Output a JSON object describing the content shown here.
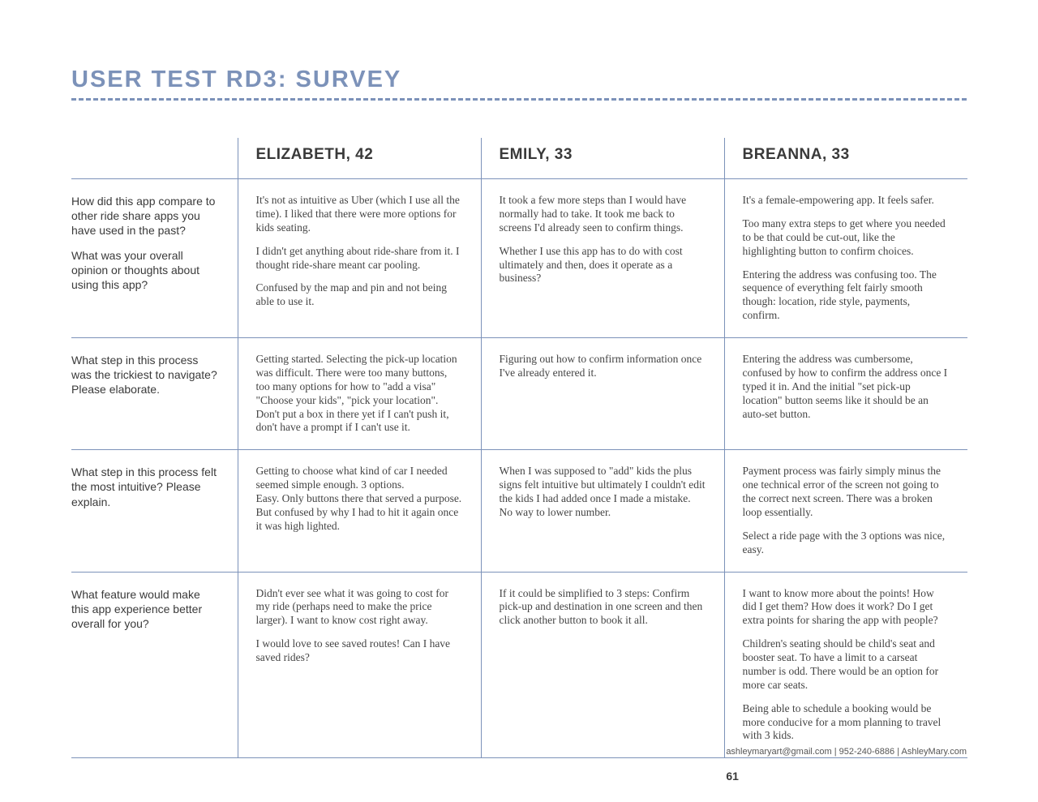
{
  "title": "USER TEST RD3: SURVEY",
  "colors": {
    "accent": "#7c92b9",
    "text": "#3f3f3f",
    "heading_text": "#3a3a3a",
    "background": "#ffffff"
  },
  "participants": [
    "ELIZABETH, 42",
    "EMILY, 33",
    "BREANNA, 33"
  ],
  "questions": [
    "How did this app compare to other ride share apps you have used in the past?\n\nWhat was your overall opinion or thoughts about using this app?",
    "What step in this process was the trickiest to navigate? Please elaborate.",
    "What step in this process felt the most intuitive? Please explain.",
    "What feature would make this app experience better overall for you?"
  ],
  "answers": [
    [
      "It's not as intuitive as Uber (which I use all the time). I liked that there were more options for kids seating.\n\nI didn't get anything about ride-share from it. I thought ride-share meant car pooling.\n\nConfused by the map and pin and not being able to use it.",
      "It took a few more steps than I would have normally had to take. It took me back to screens I'd already seen to confirm things.\n\nWhether I use this app has to do with cost ultimately and then, does it operate as a business?",
      "It's a female-empowering app. It feels safer.\n\nToo many extra steps to get where you needed to be that could be cut-out, like the highlighting button to confirm choices.\n\nEntering the address was confusing too. The sequence of everything felt fairly smooth though: location, ride style, payments, confirm."
    ],
    [
      "Getting started. Selecting the pick-up location was difficult. There were too many buttons, too many options for how to \"add a visa\" \"Choose your kids\", \"pick your location\". Don't put a box in there yet if I can't push it, don't have a prompt if I can't use it.",
      "Figuring out how to confirm information once I've already entered it.",
      "Entering the address was cumbersome, confused by how to confirm the address once I typed it in. And the initial \"set pick-up location\" button seems like it should be an auto-set button."
    ],
    [
      "Getting to choose what kind of car I needed seemed simple enough. 3 options.\nEasy. Only buttons there that served a purpose. But confused by why I had to hit it again once it was high lighted.",
      "When I was supposed to \"add\" kids the plus signs felt intuitive but ultimately I couldn't edit the kids I had added once I made a mistake. No way to lower number.",
      "Payment process was fairly simply minus the one technical error of the screen not going to the correct next screen. There was a broken loop essentially.\n\nSelect a ride page with the 3 options was nice, easy."
    ],
    [
      "Didn't ever see what it was going to cost for my ride (perhaps need to make the price larger). I want to know cost right away.\n\nI would love to see saved routes! Can I have saved rides?",
      "If it could be simplified to 3 steps: Confirm pick-up and destination in one screen and then click another button to book it all.",
      "I want to know more about the points! How did I get them? How does it work? Do I get extra points for sharing the app with people?\n\nChildren's seating should be child's seat and booster seat. To have a limit to a carseat number is odd. There would be an option for more car seats.\n\nBeing able to schedule a booking would be more conducive for a mom planning to travel with 3 kids."
    ]
  ],
  "footer": {
    "contact": "ashleymaryart@gmail.com | 952-240-6886 | AshleyMary.com",
    "page_number": "61"
  }
}
